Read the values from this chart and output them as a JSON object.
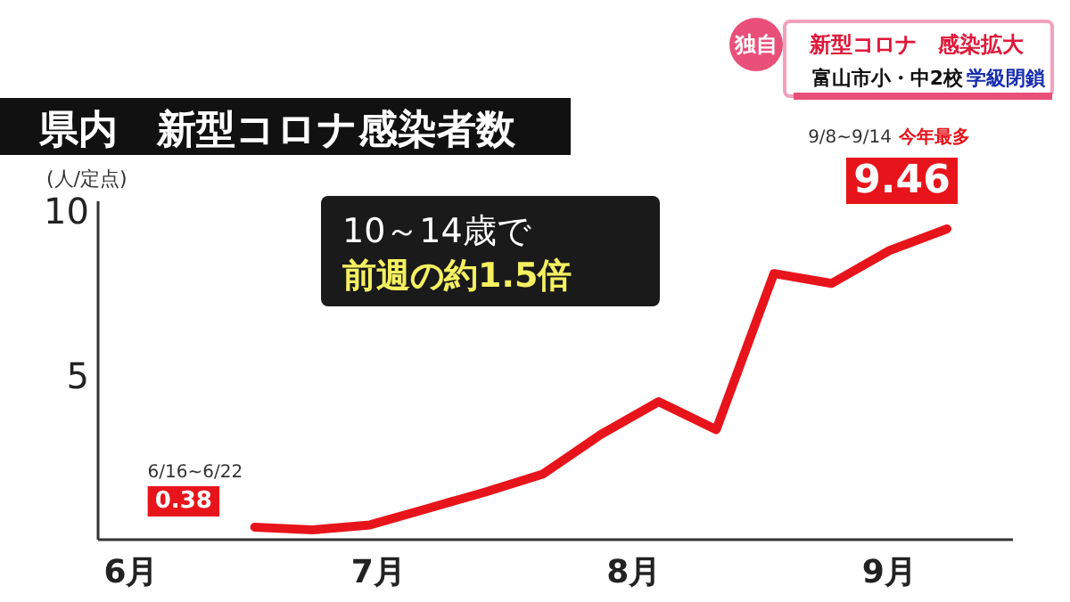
{
  "chart_data": {
    "type": "line",
    "title": "県内　新型コロナ感染者数",
    "ylabel": "(人/定点)",
    "x": [
      "--06-16",
      "--06-23",
      "--06-30",
      "--07-07",
      "--07-14",
      "--07-21",
      "--07-28",
      "--08-04",
      "--08-11",
      "--08-18",
      "--08-25",
      "--09-01",
      "--09-08"
    ],
    "series": [
      {
        "color": "#e8141b",
        "values": [
          0.38,
          0.3,
          0.45,
          0.95,
          1.45,
          2.0,
          3.2,
          4.2,
          3.35,
          8.1,
          7.8,
          8.8,
          9.46
        ],
        "value_labels": [
          "0.38",
          null,
          null,
          null,
          null,
          null,
          null,
          null,
          null,
          null,
          null,
          null,
          "9.46"
        ]
      }
    ],
    "xlim": [
      "--05-28",
      "--09-16"
    ],
    "xticks": [
      {
        "value": "--06-01",
        "label": "6月"
      },
      {
        "value": "--07-01",
        "label": "7月"
      },
      {
        "value": "--08-01",
        "label": "8月"
      },
      {
        "value": "--09-01",
        "label": "9月"
      }
    ],
    "ylim": [
      0,
      10.3
    ],
    "yticks": [
      5,
      10
    ],
    "annotations": [
      "独自",
      "新型コロナ　感染拡大",
      "富山市小・中2校",
      "学級閉鎖",
      "10～14歳で",
      "前週の約1.5倍",
      "9/8~9/14",
      "今年最多",
      {
        "text": "6/16~6/22",
        "x": "--06-16",
        "y": 0.38
      }
    ]
  }
}
